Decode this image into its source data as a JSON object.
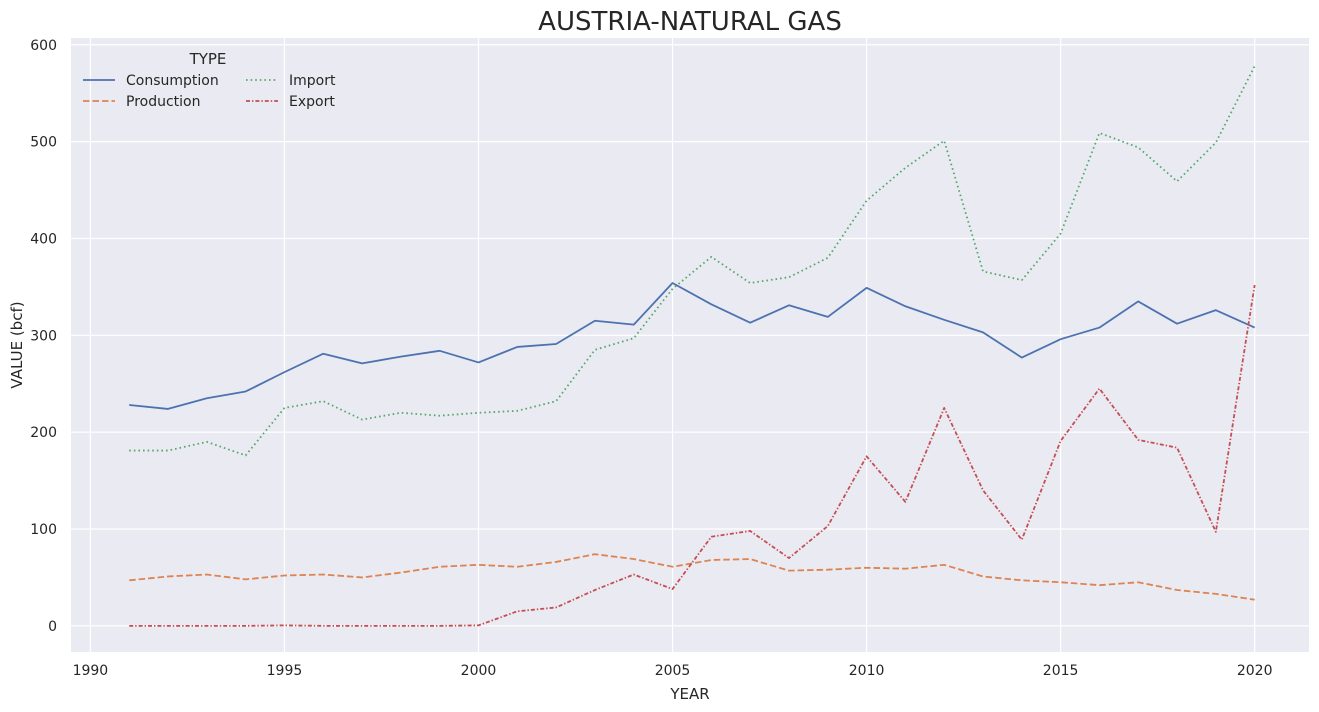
{
  "chart_data": {
    "type": "line",
    "title": "AUSTRIA-NATURAL GAS",
    "xlabel": "YEAR",
    "ylabel": "VALUE (bcf)",
    "xlim": [
      1989.5,
      2021.4
    ],
    "ylim": [
      -27,
      607
    ],
    "x_ticks": [
      1990,
      1995,
      2000,
      2005,
      2010,
      2015,
      2020
    ],
    "y_ticks": [
      0,
      100,
      200,
      300,
      400,
      500,
      600
    ],
    "grid": true,
    "background": "#eaeaf2",
    "legend": {
      "title": "TYPE",
      "placement": "top-left",
      "columns": 2
    },
    "x": [
      1991,
      1992,
      1993,
      1994,
      1995,
      1996,
      1997,
      1998,
      1999,
      2000,
      2001,
      2002,
      2003,
      2004,
      2005,
      2006,
      2007,
      2008,
      2009,
      2010,
      2011,
      2012,
      2013,
      2014,
      2015,
      2016,
      2017,
      2018,
      2019,
      2020
    ],
    "series": [
      {
        "name": "Consumption",
        "color": "#4c72b0",
        "dash": "solid",
        "values": [
          228,
          224,
          235,
          242,
          262,
          281,
          271,
          278,
          284,
          272,
          288,
          291,
          315,
          311,
          354,
          332,
          313,
          331,
          319,
          349,
          330,
          316,
          303,
          277,
          296,
          308,
          335,
          312,
          326,
          308
        ]
      },
      {
        "name": "Production",
        "color": "#dd8452",
        "dash": "dashed",
        "values": [
          47,
          51,
          53,
          48,
          52,
          53,
          50,
          55,
          61,
          63,
          61,
          66,
          74,
          69,
          61,
          68,
          69,
          57,
          58,
          60,
          59,
          63,
          51,
          47,
          45,
          42,
          45,
          37,
          33,
          27
        ]
      },
      {
        "name": "Import",
        "color": "#55a868",
        "dash": "dotted",
        "values": [
          181,
          181,
          190,
          176,
          225,
          232,
          213,
          220,
          217,
          220,
          222,
          232,
          285,
          297,
          348,
          381,
          354,
          360,
          380,
          439,
          473,
          501,
          366,
          357,
          405,
          509,
          494,
          459,
          499,
          578
        ]
      },
      {
        "name": "Export",
        "color": "#c44e52",
        "dash": "dashdot",
        "values": [
          0,
          0,
          0,
          0,
          0.5,
          0,
          0,
          0,
          0,
          0.5,
          15,
          19,
          37,
          53,
          38,
          92,
          98,
          70,
          103,
          175,
          128,
          225,
          140,
          89,
          191,
          245,
          192,
          184,
          97,
          352
        ]
      }
    ]
  }
}
